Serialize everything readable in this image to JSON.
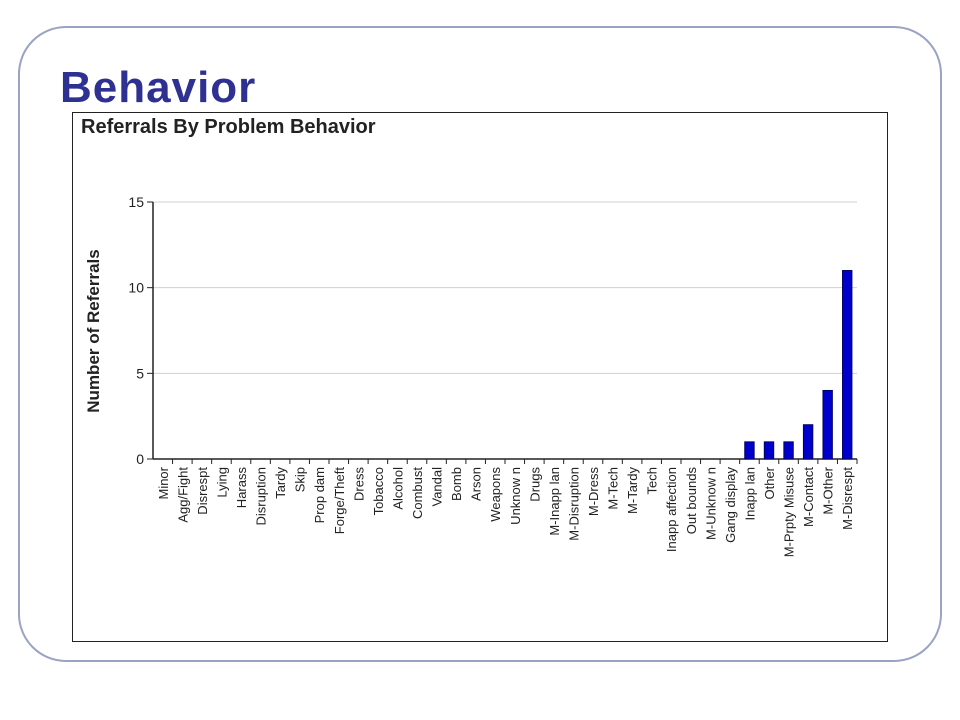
{
  "slide": {
    "title": "Behavior",
    "title_color": "#2e3192",
    "frame_color": "#9aa3c4"
  },
  "chart_data": {
    "type": "bar",
    "title": "Referrals By Problem Behavior",
    "xlabel": "",
    "ylabel": "Number of Referrals",
    "ylim": [
      0,
      15
    ],
    "yticks": [
      0,
      5,
      10,
      15
    ],
    "grid": true,
    "bar_color": "#0000cc",
    "categories": [
      "Minor",
      "Agg/Fight",
      "Disrespt",
      "Lying",
      "Harass",
      "Disruption",
      "Tardy",
      "Skip",
      "Prop dam",
      "Forge/Theft",
      "Dress",
      "Tobacco",
      "Alcohol",
      "Combust",
      "Vandal",
      "Bomb",
      "Arson",
      "Weapons",
      "Unknow n",
      "Drugs",
      "M-Inapp lan",
      "M-Disruption",
      "M-Dress",
      "M-Tech",
      "M-Tardy",
      "Tech",
      "Inapp affection",
      "Out bounds",
      "M-Unknow n",
      "Gang display",
      "Inapp lan",
      "Other",
      "M-Prpty Misuse",
      "M-Contact",
      "M-Other",
      "M-Disrespt"
    ],
    "values": [
      0,
      0,
      0,
      0,
      0,
      0,
      0,
      0,
      0,
      0,
      0,
      0,
      0,
      0,
      0,
      0,
      0,
      0,
      0,
      0,
      0,
      0,
      0,
      0,
      0,
      0,
      0,
      0,
      0,
      0,
      1,
      1,
      1,
      2,
      4,
      11
    ]
  }
}
